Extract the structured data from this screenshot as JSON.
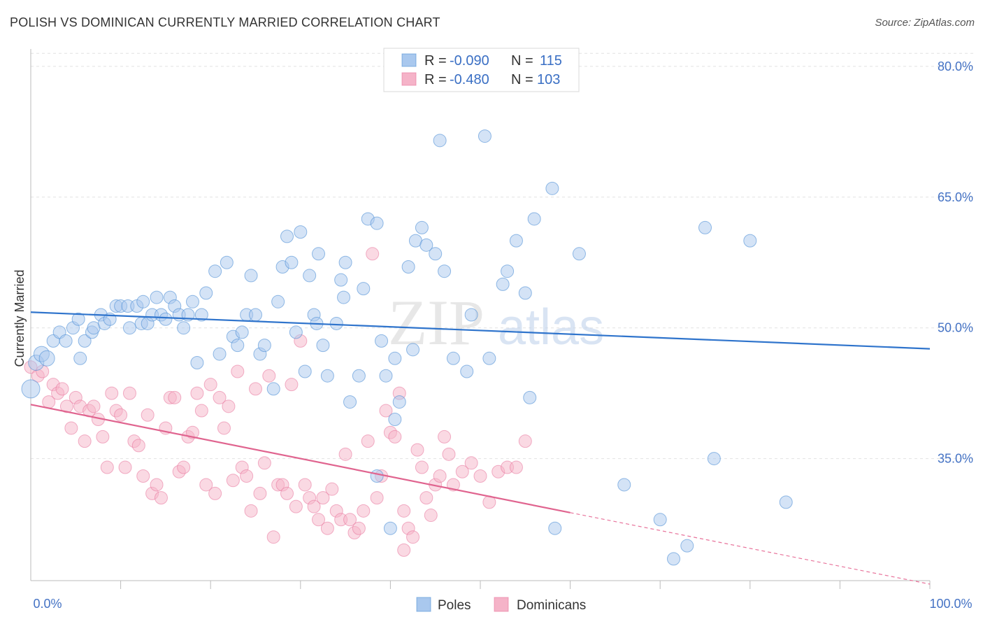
{
  "header": {
    "title": "POLISH VS DOMINICAN CURRENTLY MARRIED CORRELATION CHART",
    "source": "Source: ZipAtlas.com"
  },
  "watermark": {
    "zip": "ZIP",
    "atlas": "atlas"
  },
  "legend": {
    "rows": [
      {
        "r_label": "R = ",
        "r_value": "-0.090",
        "n_label": "N = ",
        "n_value": "115",
        "color": "#a9c8ee"
      },
      {
        "r_label": "R = ",
        "r_value": "-0.480",
        "n_label": "N = ",
        "n_value": "103",
        "color": "#f5b3c8"
      }
    ]
  },
  "bottom_legend": [
    {
      "label": "Poles",
      "color": "#a9c8ee"
    },
    {
      "label": "Dominicans",
      "color": "#f5b3c8"
    }
  ],
  "chart_data": {
    "type": "scatter",
    "title": "POLISH VS DOMINICAN CURRENTLY MARRIED CORRELATION CHART",
    "xlabel": "",
    "ylabel": "Currently Married",
    "xlim": [
      0,
      100
    ],
    "ylim": [
      21,
      82
    ],
    "y_ticks": [
      35,
      50,
      65,
      80
    ],
    "y_tick_labels": [
      "35.0%",
      "50.0%",
      "65.0%",
      "80.0%"
    ],
    "x_tick_labels": [
      "0.0%",
      "100.0%"
    ],
    "grid": "horizontal dashed",
    "colors": {
      "poles": "#4f8fd6",
      "poles_fill": "#a9c8ee",
      "dominicans": "#e8739b",
      "dominicans_fill": "#f5b3c8"
    },
    "series": [
      {
        "name": "Poles",
        "trend": {
          "x": [
            0,
            100
          ],
          "y": [
            51.8,
            47.6
          ]
        },
        "points": [
          [
            0,
            43
          ],
          [
            0.6,
            46
          ],
          [
            1.2,
            47
          ],
          [
            1.8,
            46.5
          ],
          [
            2.5,
            48.5
          ],
          [
            3.2,
            49.5
          ],
          [
            3.9,
            48.5
          ],
          [
            4.7,
            50
          ],
          [
            5.3,
            51
          ],
          [
            5.5,
            46.5
          ],
          [
            6,
            48.5
          ],
          [
            6.8,
            49.5
          ],
          [
            7,
            50
          ],
          [
            7.8,
            51.5
          ],
          [
            8.2,
            50.5
          ],
          [
            8.8,
            51
          ],
          [
            9.5,
            52.5
          ],
          [
            10,
            52.5
          ],
          [
            10.8,
            52.5
          ],
          [
            11,
            50
          ],
          [
            11.8,
            52.5
          ],
          [
            12.5,
            53
          ],
          [
            12.3,
            50.5
          ],
          [
            13,
            50.5
          ],
          [
            13.5,
            51.5
          ],
          [
            14,
            53.5
          ],
          [
            14.5,
            51.5
          ],
          [
            15,
            51
          ],
          [
            15.5,
            53.5
          ],
          [
            16,
            52.5
          ],
          [
            16.5,
            51.5
          ],
          [
            17,
            50
          ],
          [
            17.5,
            51.5
          ],
          [
            18,
            53
          ],
          [
            18.5,
            46
          ],
          [
            19,
            51.5
          ],
          [
            19.5,
            54
          ],
          [
            20.5,
            56.5
          ],
          [
            21,
            47
          ],
          [
            21.8,
            57.5
          ],
          [
            22.5,
            49
          ],
          [
            23,
            48
          ],
          [
            23.5,
            49.5
          ],
          [
            24,
            51.5
          ],
          [
            24.5,
            56
          ],
          [
            25,
            51.5
          ],
          [
            25.5,
            47
          ],
          [
            26,
            48
          ],
          [
            27,
            43
          ],
          [
            27.5,
            53
          ],
          [
            28,
            57
          ],
          [
            28.5,
            60.5
          ],
          [
            29,
            57.5
          ],
          [
            29.5,
            49.5
          ],
          [
            30,
            61
          ],
          [
            30.5,
            45
          ],
          [
            31,
            56
          ],
          [
            31.5,
            51.5
          ],
          [
            31.8,
            50.5
          ],
          [
            32,
            58.5
          ],
          [
            32.5,
            48
          ],
          [
            33,
            44.5
          ],
          [
            34,
            50.5
          ],
          [
            34.5,
            55.5
          ],
          [
            34.8,
            53.5
          ],
          [
            35,
            57.5
          ],
          [
            35.5,
            41.5
          ],
          [
            36.5,
            44.5
          ],
          [
            37,
            54.5
          ],
          [
            37.5,
            62.5
          ],
          [
            38.5,
            62
          ],
          [
            39,
            48.5
          ],
          [
            39.5,
            44.5
          ],
          [
            40.5,
            46.5
          ],
          [
            42,
            57
          ],
          [
            42.5,
            47.5
          ],
          [
            42.8,
            60
          ],
          [
            43.5,
            61.5
          ],
          [
            44,
            59.5
          ],
          [
            45,
            58.5
          ],
          [
            45.5,
            71.5
          ],
          [
            46,
            56.5
          ],
          [
            46.5,
            78.5
          ],
          [
            47,
            46.5
          ],
          [
            48.5,
            45
          ],
          [
            49,
            51.5
          ],
          [
            50.5,
            72
          ],
          [
            51,
            46.5
          ],
          [
            52.5,
            55
          ],
          [
            53,
            56.5
          ],
          [
            54,
            60
          ],
          [
            55,
            54
          ],
          [
            55.5,
            42
          ],
          [
            56,
            62.5
          ],
          [
            58,
            66
          ],
          [
            58.3,
            27
          ],
          [
            61,
            58.5
          ],
          [
            66,
            32
          ],
          [
            70,
            28
          ],
          [
            71.5,
            23.5
          ],
          [
            73,
            25
          ],
          [
            75,
            61.5
          ],
          [
            76,
            35
          ],
          [
            80,
            60
          ],
          [
            84,
            30
          ],
          [
            38.5,
            33
          ],
          [
            40,
            27
          ],
          [
            40.5,
            39.5
          ],
          [
            41,
            41.5
          ]
        ]
      },
      {
        "name": "Dominicans",
        "trend": {
          "x": [
            0,
            60
          ],
          "y": [
            41.2,
            28.8
          ]
        },
        "trend_extension": {
          "x": [
            60,
            100
          ],
          "y": [
            28.8,
            20.6
          ]
        },
        "points": [
          [
            0,
            45.5
          ],
          [
            0.8,
            44.5
          ],
          [
            1.3,
            45
          ],
          [
            2,
            41.5
          ],
          [
            2.5,
            43.5
          ],
          [
            3,
            42.5
          ],
          [
            3.5,
            43
          ],
          [
            4,
            41
          ],
          [
            4.5,
            38.5
          ],
          [
            5,
            42
          ],
          [
            5.5,
            41
          ],
          [
            6,
            37
          ],
          [
            6.5,
            40.5
          ],
          [
            7,
            41
          ],
          [
            7.5,
            39.5
          ],
          [
            8,
            37.5
          ],
          [
            8.5,
            34
          ],
          [
            9,
            42.5
          ],
          [
            9.5,
            40.5
          ],
          [
            10,
            40
          ],
          [
            10.5,
            34
          ],
          [
            11,
            42.5
          ],
          [
            11.5,
            37
          ],
          [
            12,
            36.5
          ],
          [
            12.5,
            33
          ],
          [
            13,
            40
          ],
          [
            13.5,
            31
          ],
          [
            14,
            32
          ],
          [
            14.5,
            30.5
          ],
          [
            15,
            38.5
          ],
          [
            15.5,
            42
          ],
          [
            16,
            42
          ],
          [
            16.5,
            33.5
          ],
          [
            17,
            34
          ],
          [
            17.5,
            37.5
          ],
          [
            18,
            38
          ],
          [
            18.5,
            42.5
          ],
          [
            19,
            40.5
          ],
          [
            19.5,
            32
          ],
          [
            20,
            43.5
          ],
          [
            20.5,
            31
          ],
          [
            21,
            42
          ],
          [
            21.5,
            38.5
          ],
          [
            22,
            41
          ],
          [
            22.5,
            32.5
          ],
          [
            23,
            45
          ],
          [
            23.5,
            34
          ],
          [
            24,
            33
          ],
          [
            24.5,
            29
          ],
          [
            25,
            43
          ],
          [
            25.5,
            31
          ],
          [
            26,
            34.5
          ],
          [
            26.5,
            44.5
          ],
          [
            27,
            26
          ],
          [
            27.5,
            32
          ],
          [
            28,
            32
          ],
          [
            28.5,
            31
          ],
          [
            29,
            43.5
          ],
          [
            29.5,
            29.5
          ],
          [
            30,
            48.5
          ],
          [
            30.5,
            32
          ],
          [
            31,
            30.5
          ],
          [
            31.5,
            29.5
          ],
          [
            32,
            28
          ],
          [
            32.5,
            30.5
          ],
          [
            33,
            27
          ],
          [
            33.5,
            31.5
          ],
          [
            34,
            29
          ],
          [
            34.5,
            28
          ],
          [
            35,
            35.5
          ],
          [
            35.5,
            28
          ],
          [
            36,
            26.5
          ],
          [
            36.5,
            27
          ],
          [
            37,
            29
          ],
          [
            37.5,
            37
          ],
          [
            38,
            58.5
          ],
          [
            38.5,
            30.5
          ],
          [
            39,
            33
          ],
          [
            39.5,
            40.5
          ],
          [
            40,
            38
          ],
          [
            40.5,
            37.5
          ],
          [
            41,
            42.5
          ],
          [
            41.5,
            29
          ],
          [
            42,
            27
          ],
          [
            42.5,
            26
          ],
          [
            43,
            36
          ],
          [
            43.5,
            34
          ],
          [
            44,
            30.5
          ],
          [
            44.5,
            28.5
          ],
          [
            45,
            32
          ],
          [
            45.5,
            33
          ],
          [
            46,
            37.5
          ],
          [
            46.5,
            35.5
          ],
          [
            47,
            32
          ],
          [
            48,
            33.5
          ],
          [
            49,
            34.5
          ],
          [
            50,
            33
          ],
          [
            51,
            30
          ],
          [
            52,
            33.5
          ],
          [
            53,
            34
          ],
          [
            54,
            34
          ],
          [
            55,
            37
          ],
          [
            41.5,
            24.5
          ]
        ]
      }
    ]
  }
}
